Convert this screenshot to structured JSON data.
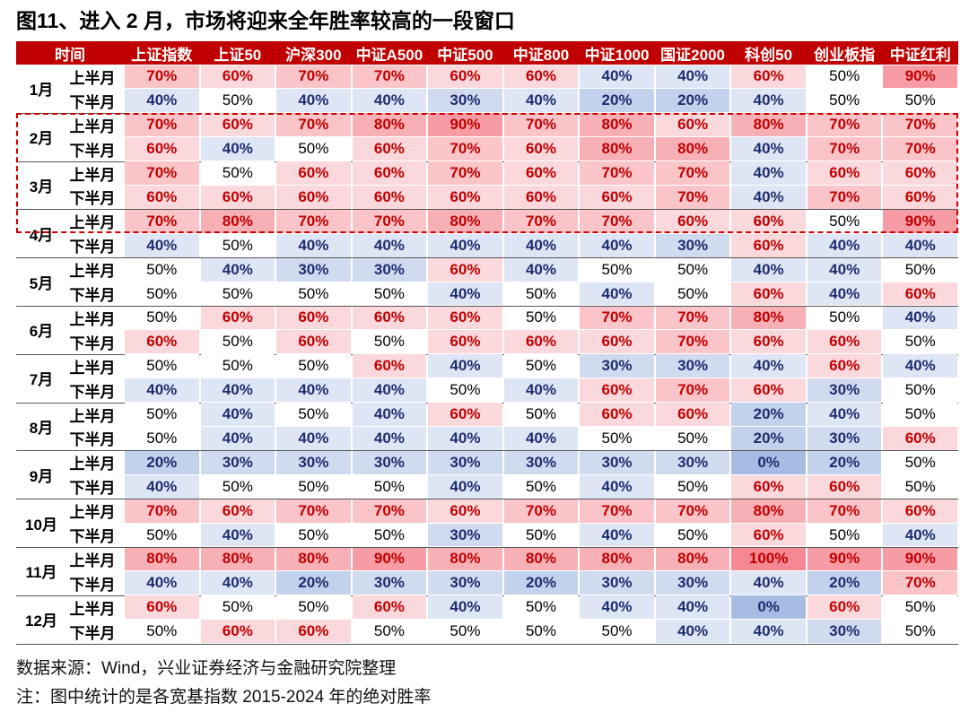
{
  "title": "图11、进入 2 月，市场将迎来全年胜率较高的一段窗口",
  "header": [
    "时间",
    "上证指数",
    "上证50",
    "沪深300",
    "中证A500",
    "中证500",
    "中证800",
    "中证1000",
    "国证2000",
    "科创50",
    "创业板指",
    "中证红利"
  ],
  "months": [
    {
      "month": "1月",
      "rows": [
        {
          "half": "上半月",
          "values": [
            "70%",
            "60%",
            "70%",
            "70%",
            "60%",
            "60%",
            "40%",
            "40%",
            "60%",
            "50%",
            "90%"
          ]
        },
        {
          "half": "下半月",
          "values": [
            "40%",
            "50%",
            "40%",
            "40%",
            "30%",
            "40%",
            "20%",
            "20%",
            "40%",
            "50%",
            "50%"
          ]
        }
      ]
    },
    {
      "month": "2月",
      "rows": [
        {
          "half": "上半月",
          "values": [
            "70%",
            "60%",
            "70%",
            "80%",
            "90%",
            "70%",
            "80%",
            "60%",
            "80%",
            "70%",
            "70%"
          ]
        },
        {
          "half": "下半月",
          "values": [
            "60%",
            "40%",
            "50%",
            "60%",
            "70%",
            "60%",
            "80%",
            "80%",
            "40%",
            "70%",
            "70%"
          ]
        }
      ]
    },
    {
      "month": "3月",
      "rows": [
        {
          "half": "上半月",
          "values": [
            "70%",
            "50%",
            "60%",
            "60%",
            "70%",
            "60%",
            "70%",
            "70%",
            "40%",
            "60%",
            "60%"
          ]
        },
        {
          "half": "下半月",
          "values": [
            "60%",
            "60%",
            "60%",
            "60%",
            "60%",
            "60%",
            "60%",
            "70%",
            "40%",
            "70%",
            "60%"
          ]
        }
      ]
    },
    {
      "month": "4月",
      "rows": [
        {
          "half": "上半月",
          "values": [
            "70%",
            "80%",
            "70%",
            "70%",
            "80%",
            "70%",
            "70%",
            "60%",
            "60%",
            "50%",
            "90%"
          ]
        },
        {
          "half": "下半月",
          "values": [
            "40%",
            "50%",
            "40%",
            "40%",
            "40%",
            "40%",
            "40%",
            "30%",
            "60%",
            "40%",
            "40%"
          ]
        }
      ]
    },
    {
      "month": "5月",
      "rows": [
        {
          "half": "上半月",
          "values": [
            "50%",
            "40%",
            "30%",
            "30%",
            "60%",
            "40%",
            "50%",
            "50%",
            "40%",
            "40%",
            "50%"
          ]
        },
        {
          "half": "下半月",
          "values": [
            "50%",
            "50%",
            "50%",
            "50%",
            "40%",
            "50%",
            "40%",
            "50%",
            "60%",
            "40%",
            "60%"
          ]
        }
      ]
    },
    {
      "month": "6月",
      "rows": [
        {
          "half": "上半月",
          "values": [
            "50%",
            "60%",
            "60%",
            "60%",
            "60%",
            "50%",
            "70%",
            "70%",
            "80%",
            "50%",
            "40%"
          ]
        },
        {
          "half": "下半月",
          "values": [
            "60%",
            "50%",
            "60%",
            "50%",
            "60%",
            "60%",
            "60%",
            "70%",
            "60%",
            "60%",
            "50%"
          ]
        }
      ]
    },
    {
      "month": "7月",
      "rows": [
        {
          "half": "上半月",
          "values": [
            "50%",
            "50%",
            "50%",
            "60%",
            "40%",
            "50%",
            "30%",
            "30%",
            "40%",
            "60%",
            "40%"
          ]
        },
        {
          "half": "下半月",
          "values": [
            "40%",
            "40%",
            "40%",
            "40%",
            "50%",
            "40%",
            "60%",
            "70%",
            "60%",
            "30%",
            "50%"
          ]
        }
      ]
    },
    {
      "month": "8月",
      "rows": [
        {
          "half": "上半月",
          "values": [
            "50%",
            "40%",
            "50%",
            "40%",
            "60%",
            "50%",
            "60%",
            "60%",
            "20%",
            "40%",
            "50%"
          ]
        },
        {
          "half": "下半月",
          "values": [
            "50%",
            "40%",
            "40%",
            "40%",
            "40%",
            "40%",
            "50%",
            "50%",
            "20%",
            "30%",
            "60%"
          ]
        }
      ]
    },
    {
      "month": "9月",
      "rows": [
        {
          "half": "上半月",
          "values": [
            "20%",
            "30%",
            "30%",
            "30%",
            "30%",
            "30%",
            "30%",
            "30%",
            "0%",
            "20%",
            "50%"
          ]
        },
        {
          "half": "下半月",
          "values": [
            "40%",
            "50%",
            "50%",
            "50%",
            "40%",
            "50%",
            "40%",
            "50%",
            "60%",
            "60%",
            "50%"
          ]
        }
      ]
    },
    {
      "month": "10月",
      "rows": [
        {
          "half": "上半月",
          "values": [
            "70%",
            "60%",
            "70%",
            "70%",
            "60%",
            "70%",
            "70%",
            "70%",
            "80%",
            "70%",
            "60%"
          ]
        },
        {
          "half": "下半月",
          "values": [
            "50%",
            "40%",
            "50%",
            "50%",
            "30%",
            "50%",
            "40%",
            "50%",
            "60%",
            "50%",
            "40%"
          ]
        }
      ]
    },
    {
      "month": "11月",
      "rows": [
        {
          "half": "上半月",
          "values": [
            "80%",
            "80%",
            "80%",
            "90%",
            "80%",
            "80%",
            "80%",
            "80%",
            "100%",
            "90%",
            "90%"
          ]
        },
        {
          "half": "下半月",
          "values": [
            "40%",
            "40%",
            "20%",
            "30%",
            "30%",
            "20%",
            "30%",
            "30%",
            "40%",
            "20%",
            "70%"
          ]
        }
      ]
    },
    {
      "month": "12月",
      "rows": [
        {
          "half": "上半月",
          "values": [
            "60%",
            "50%",
            "50%",
            "60%",
            "40%",
            "50%",
            "40%",
            "40%",
            "0%",
            "60%",
            "50%"
          ]
        },
        {
          "half": "下半月",
          "values": [
            "50%",
            "60%",
            "60%",
            "50%",
            "50%",
            "50%",
            "50%",
            "40%",
            "40%",
            "30%",
            "50%"
          ]
        }
      ]
    }
  ],
  "notes": [
    "数据来源：Wind，兴业证券经济与金融研究院整理",
    "注：图中统计的是各宽基指数 2015-2024 年的绝对胜率"
  ]
}
